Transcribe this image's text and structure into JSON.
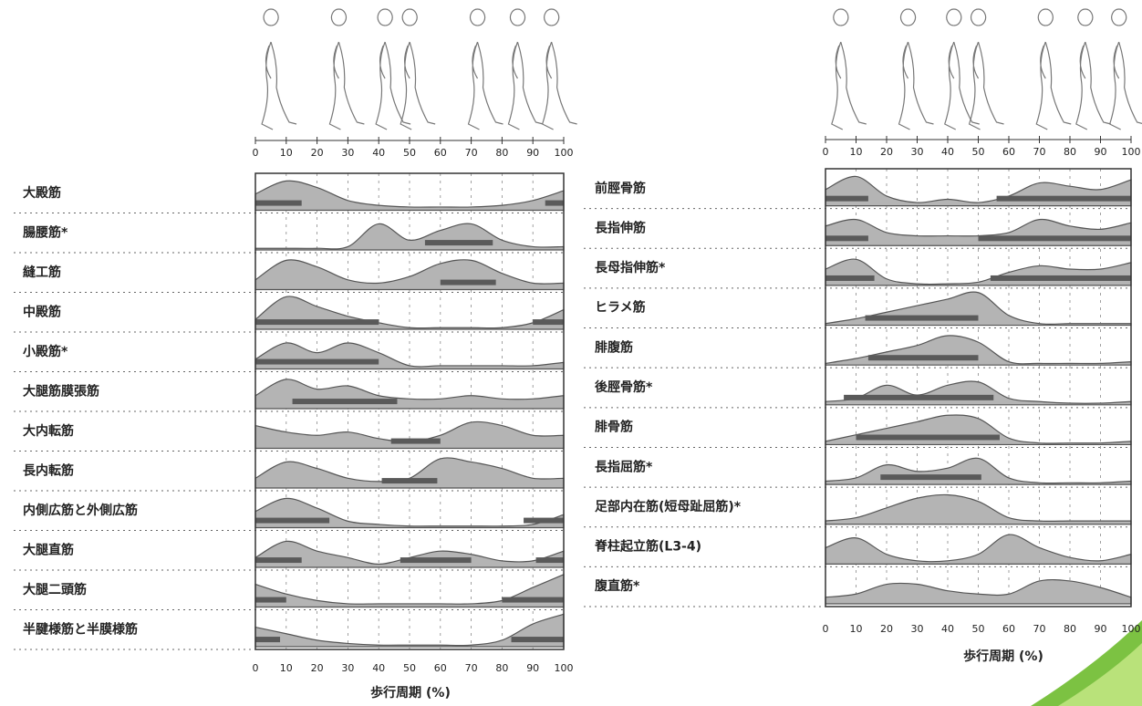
{
  "panels": [
    {
      "xticks": [
        0,
        10,
        20,
        30,
        40,
        50,
        60,
        70,
        80,
        90,
        100
      ],
      "profile_x": [
        0,
        10,
        20,
        30,
        40,
        50,
        60,
        70,
        80,
        90,
        100
      ],
      "axis_title": "歩行周期 (%)",
      "rows": [
        {
          "label": "大殿筋",
          "profile": [
            0.5,
            0.9,
            0.7,
            0.3,
            0.15,
            0.1,
            0.1,
            0.1,
            0.15,
            0.3,
            0.6
          ],
          "bars": [
            [
              0,
              15
            ],
            [
              94,
              100
            ]
          ]
        },
        {
          "label": "腸腰筋*",
          "profile": [
            0.05,
            0.05,
            0.05,
            0.1,
            0.8,
            0.3,
            0.6,
            0.8,
            0.3,
            0.1,
            0.1
          ],
          "bars": [
            [
              55,
              77
            ]
          ]
        },
        {
          "label": "縫工筋",
          "profile": [
            0.3,
            0.9,
            0.7,
            0.3,
            0.2,
            0.4,
            0.8,
            0.9,
            0.5,
            0.2,
            0.2
          ],
          "bars": [
            [
              60,
              78
            ]
          ]
        },
        {
          "label": "中殿筋",
          "profile": [
            0.3,
            1.0,
            0.7,
            0.4,
            0.2,
            0.05,
            0.05,
            0.05,
            0.05,
            0.2,
            0.6
          ],
          "bars": [
            [
              0,
              40
            ],
            [
              90,
              100
            ]
          ]
        },
        {
          "label": "小殿筋*",
          "profile": [
            0.3,
            0.8,
            0.5,
            0.8,
            0.5,
            0.1,
            0.1,
            0.1,
            0.1,
            0.1,
            0.2
          ],
          "bars": [
            [
              0,
              40
            ]
          ]
        },
        {
          "label": "大腿筋膜張筋",
          "profile": [
            0.4,
            0.9,
            0.6,
            0.7,
            0.4,
            0.3,
            0.3,
            0.4,
            0.3,
            0.3,
            0.4
          ],
          "bars": [
            [
              12,
              46
            ]
          ]
        },
        {
          "label": "大内転筋",
          "profile": [
            0.7,
            0.5,
            0.4,
            0.5,
            0.3,
            0.2,
            0.4,
            0.8,
            0.7,
            0.4,
            0.4
          ],
          "bars": [
            [
              44,
              60
            ]
          ]
        },
        {
          "label": "長内転筋",
          "profile": [
            0.3,
            0.8,
            0.6,
            0.3,
            0.2,
            0.3,
            0.9,
            0.8,
            0.6,
            0.3,
            0.3
          ],
          "bars": [
            [
              41,
              59
            ]
          ]
        },
        {
          "label": "内側広筋と外側広筋",
          "profile": [
            0.5,
            0.9,
            0.6,
            0.2,
            0.1,
            0.05,
            0.05,
            0.05,
            0.05,
            0.1,
            0.4
          ],
          "bars": [
            [
              0,
              24
            ],
            [
              87,
              100
            ]
          ]
        },
        {
          "label": "大腿直筋",
          "profile": [
            0.3,
            0.8,
            0.5,
            0.3,
            0.1,
            0.3,
            0.5,
            0.4,
            0.2,
            0.2,
            0.5
          ],
          "bars": [
            [
              0,
              15
            ],
            [
              47,
              70
            ],
            [
              91,
              100
            ]
          ]
        },
        {
          "label": "大腿二頭筋",
          "profile": [
            0.7,
            0.4,
            0.2,
            0.1,
            0.1,
            0.1,
            0.1,
            0.1,
            0.2,
            0.6,
            1.0
          ],
          "bars": [
            [
              0,
              10
            ],
            [
              80,
              100
            ]
          ]
        },
        {
          "label": "半腱様筋と半膜様筋",
          "profile": [
            0.6,
            0.4,
            0.2,
            0.1,
            0.05,
            0.05,
            0.05,
            0.05,
            0.2,
            0.7,
            1.0
          ],
          "bars": [
            [
              0,
              8
            ],
            [
              83,
              100
            ]
          ]
        }
      ]
    },
    {
      "xticks": [
        0,
        10,
        20,
        30,
        40,
        50,
        60,
        70,
        80,
        90,
        100
      ],
      "profile_x": [
        0,
        10,
        20,
        30,
        40,
        50,
        60,
        70,
        80,
        90,
        100
      ],
      "axis_title": "歩行周期 (%)",
      "rows": [
        {
          "label": "前脛骨筋",
          "profile": [
            0.5,
            0.9,
            0.3,
            0.1,
            0.2,
            0.1,
            0.3,
            0.7,
            0.6,
            0.5,
            0.8
          ],
          "bars": [
            [
              0,
              14
            ],
            [
              56,
              100
            ]
          ]
        },
        {
          "label": "長指伸筋",
          "profile": [
            0.6,
            0.8,
            0.4,
            0.3,
            0.3,
            0.3,
            0.4,
            0.8,
            0.6,
            0.5,
            0.7
          ],
          "bars": [
            [
              0,
              14
            ],
            [
              50,
              100
            ]
          ]
        },
        {
          "label": "長母指伸筋*",
          "profile": [
            0.5,
            0.8,
            0.2,
            0.05,
            0.05,
            0.1,
            0.4,
            0.6,
            0.5,
            0.5,
            0.7
          ],
          "bars": [
            [
              0,
              16
            ],
            [
              54,
              100
            ]
          ]
        },
        {
          "label": "ヒラメ筋",
          "profile": [
            0.05,
            0.2,
            0.4,
            0.6,
            0.8,
            1.0,
            0.3,
            0.05,
            0.05,
            0.05,
            0.05
          ],
          "bars": [
            [
              13,
              50
            ]
          ]
        },
        {
          "label": "腓腹筋",
          "profile": [
            0.05,
            0.2,
            0.4,
            0.6,
            0.9,
            0.7,
            0.1,
            0.05,
            0.05,
            0.05,
            0.1
          ],
          "bars": [
            [
              14,
              50
            ]
          ]
        },
        {
          "label": "後脛骨筋*",
          "profile": [
            0.1,
            0.2,
            0.6,
            0.3,
            0.6,
            0.7,
            0.2,
            0.1,
            0.05,
            0.05,
            0.1
          ],
          "bars": [
            [
              6,
              55
            ]
          ]
        },
        {
          "label": "腓骨筋",
          "profile": [
            0.1,
            0.3,
            0.5,
            0.7,
            0.9,
            0.8,
            0.2,
            0.05,
            0.05,
            0.05,
            0.1
          ],
          "bars": [
            [
              10,
              57
            ]
          ]
        },
        {
          "label": "長指屈筋*",
          "profile": [
            0.1,
            0.2,
            0.6,
            0.4,
            0.5,
            0.8,
            0.2,
            0.05,
            0.05,
            0.05,
            0.1
          ],
          "bars": [
            [
              18,
              51
            ]
          ]
        },
        {
          "label": "足部内在筋(短母趾屈筋)*",
          "profile": [
            0.1,
            0.2,
            0.5,
            0.8,
            0.9,
            0.7,
            0.2,
            0.1,
            0.1,
            0.1,
            0.1
          ]
        },
        {
          "label": "脊柱起立筋(L3-4)",
          "profile": [
            0.5,
            0.8,
            0.3,
            0.1,
            0.1,
            0.3,
            0.9,
            0.5,
            0.2,
            0.1,
            0.3
          ]
        },
        {
          "label": "腹直筋*",
          "profile": [
            0.2,
            0.3,
            0.6,
            0.6,
            0.4,
            0.3,
            0.3,
            0.7,
            0.7,
            0.5,
            0.2
          ]
        }
      ]
    }
  ]
}
